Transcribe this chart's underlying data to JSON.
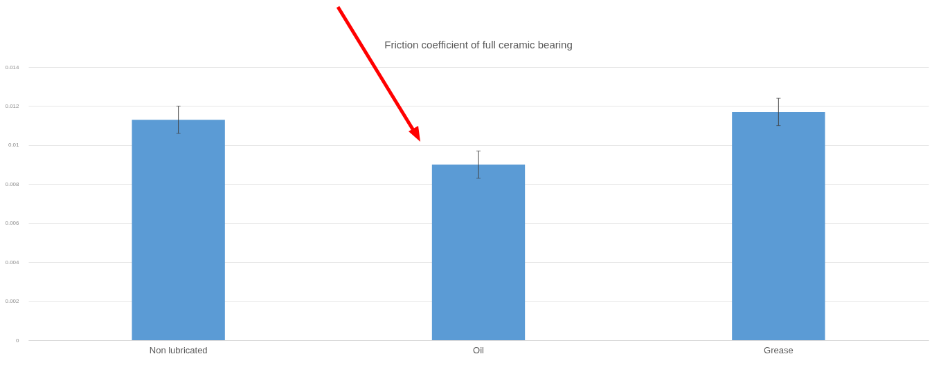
{
  "chart_data": {
    "type": "bar",
    "title": "Friction coefficient of full ceramic bearing",
    "categories": [
      "Non lubricated",
      "Oil",
      "Grease"
    ],
    "values": [
      0.0113,
      0.009,
      0.0117
    ],
    "errors": [
      0.0007,
      0.0007,
      0.0007
    ],
    "color": "#5b9bd5",
    "ylim": [
      0,
      0.014
    ],
    "yticks": [
      0,
      0.002,
      0.004,
      0.006,
      0.008,
      0.01,
      0.012,
      0.014
    ],
    "grid": "y"
  }
}
